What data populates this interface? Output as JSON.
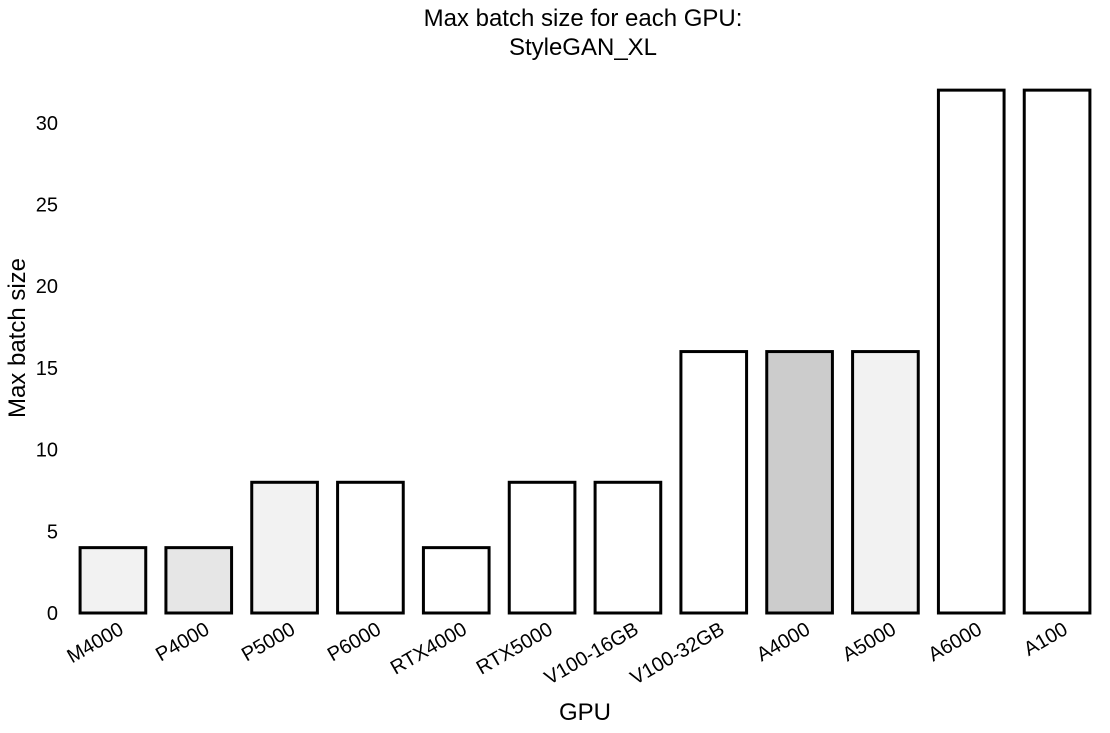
{
  "chart_data": {
    "type": "bar",
    "title": "Max batch size for each GPU:",
    "subtitle": "StyleGAN_XL",
    "xlabel": "GPU",
    "ylabel": "Max batch size",
    "categories": [
      "M4000",
      "P4000",
      "P5000",
      "P6000",
      "RTX4000",
      "RTX5000",
      "V100-16GB",
      "V100-32GB",
      "A4000",
      "A5000",
      "A6000",
      "A100"
    ],
    "values": [
      4,
      4,
      8,
      8,
      4,
      8,
      8,
      16,
      16,
      16,
      32,
      32
    ],
    "bar_fills": [
      "#f2f2f2",
      "#e6e6e6",
      "#f2f2f2",
      "#ffffff",
      "#ffffff",
      "#ffffff",
      "#ffffff",
      "#ffffff",
      "#cccccc",
      "#f2f2f2",
      "#ffffff",
      "#ffffff"
    ],
    "yticks": [
      0,
      5,
      10,
      15,
      20,
      25,
      30
    ],
    "ylim": [
      0,
      33.6
    ],
    "grid": false,
    "legend": "none"
  }
}
